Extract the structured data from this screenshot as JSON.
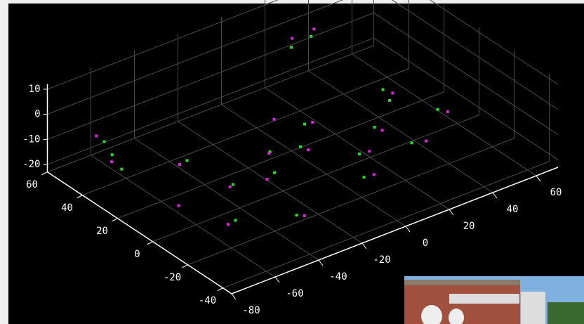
{
  "chart_data": {
    "type": "scatter3d",
    "xlim": [
      -80,
      70
    ],
    "ylim": [
      -45,
      60
    ],
    "zlim": [
      -23,
      12
    ],
    "xticks": [
      -80,
      -60,
      -40,
      -20,
      0,
      20,
      40,
      60
    ],
    "yticks": [
      -40,
      -20,
      0,
      20,
      40,
      60
    ],
    "zticks": [
      -20,
      -10,
      0,
      10
    ],
    "grid": true,
    "series": [
      {
        "color": "#22dd22",
        "x": [
          -70,
          -68,
          -66,
          -40,
          -35,
          -20,
          -10,
          0,
          10,
          15,
          30,
          35,
          45,
          50,
          20,
          -50,
          -30,
          5,
          25,
          55
        ],
        "y": [
          40,
          38,
          35,
          30,
          10,
          5,
          20,
          15,
          25,
          0,
          10,
          -5,
          20,
          30,
          45,
          -10,
          -20,
          -15,
          40,
          5
        ],
        "z": [
          -5,
          -10,
          -15,
          -18,
          -20,
          -18,
          -20,
          -19,
          -18,
          -20,
          -19,
          -20,
          -18,
          -20,
          0,
          -20,
          -20,
          -19,
          5,
          -18
        ]
      },
      {
        "color": "#dd22dd",
        "x": [
          -72,
          -69,
          -45,
          -38,
          -25,
          -12,
          2,
          12,
          18,
          32,
          40,
          48,
          22,
          -55,
          -28,
          8,
          28,
          58,
          -60,
          0
        ],
        "y": [
          42,
          37,
          28,
          8,
          3,
          18,
          13,
          23,
          -2,
          8,
          -7,
          22,
          47,
          -12,
          -22,
          -17,
          42,
          3,
          10,
          30
        ],
        "z": [
          -3,
          -12,
          -17,
          -19,
          -18,
          -19,
          -20,
          -17,
          -19,
          -20,
          -20,
          -17,
          2,
          -19,
          -20,
          -18,
          6,
          -19,
          -20,
          -15
        ]
      }
    ]
  }
}
